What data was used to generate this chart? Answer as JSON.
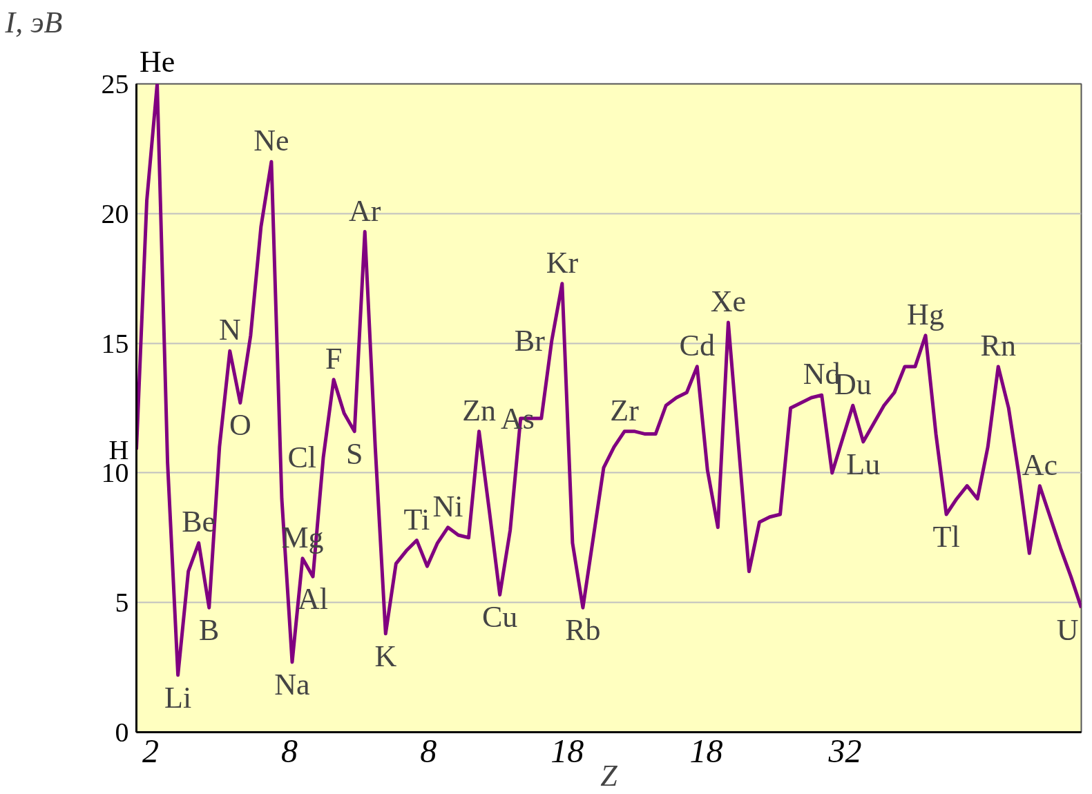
{
  "chart_data": {
    "type": "line",
    "xlabel": "Z",
    "ylabel": "I, эВ",
    "categories": [
      null,
      null,
      null,
      null,
      null,
      null,
      null,
      null,
      null,
      null,
      null,
      null,
      null,
      null,
      null,
      null,
      null,
      null,
      null,
      null,
      null,
      null,
      null,
      null,
      null,
      null,
      null,
      null,
      null,
      null,
      null,
      null,
      null,
      null,
      null,
      null,
      null,
      null,
      null,
      null,
      null,
      null,
      null,
      null,
      null,
      null,
      null,
      null,
      null,
      null,
      null,
      null,
      null,
      null,
      null,
      null,
      null,
      null,
      null,
      null,
      null,
      null,
      null,
      null,
      null,
      null,
      null,
      null,
      null,
      null,
      null,
      null,
      null,
      null,
      null,
      null,
      null,
      null,
      null,
      null,
      null,
      null,
      null,
      null,
      null,
      null,
      null,
      null,
      null,
      null,
      null,
      null
    ],
    "series": [
      {
        "color": "#800080",
        "values": [
          10.9,
          20.5,
          25.0,
          10.4,
          2.2,
          6.2,
          7.3,
          4.8,
          11.0,
          14.7,
          12.7,
          15.3,
          19.5,
          22.0,
          9.0,
          2.7,
          6.7,
          6.0,
          10.6,
          13.6,
          12.3,
          11.6,
          19.3,
          11.0,
          3.8,
          6.5,
          7.0,
          7.4,
          6.4,
          7.3,
          7.9,
          7.6,
          7.5,
          11.6,
          8.5,
          5.3,
          7.8,
          12.1,
          12.1,
          12.1,
          15.1,
          17.3,
          7.3,
          4.8,
          7.5,
          10.2,
          11.0,
          11.6,
          11.6,
          11.5,
          11.5,
          12.6,
          12.9,
          13.1,
          14.1,
          10.1,
          7.9,
          15.8,
          11.0,
          6.2,
          8.1,
          8.3,
          8.4,
          12.5,
          12.7,
          12.9,
          13.0,
          10.0,
          11.3,
          12.6,
          11.2,
          11.9,
          12.6,
          13.1,
          14.1,
          14.1,
          15.3,
          11.5,
          8.4,
          9.0,
          9.5,
          9.0,
          11.0,
          14.1,
          12.5,
          9.9,
          6.9,
          9.5,
          8.3,
          7.1,
          6.0,
          4.8
        ],
        "value_labels": [
          "H",
          null,
          "He",
          null,
          "Li",
          null,
          "Be",
          "B",
          null,
          "N",
          "O",
          null,
          null,
          "Ne",
          null,
          "Na",
          "Mg",
          "Al",
          "Cl",
          "F",
          null,
          "S",
          "Ar",
          null,
          "K",
          null,
          null,
          "Ti",
          null,
          null,
          "Ni",
          null,
          null,
          "Zn",
          null,
          "Cu",
          null,
          null,
          null,
          "As",
          "Br",
          "Kr",
          null,
          "Rb",
          null,
          null,
          null,
          "Zr",
          null,
          null,
          null,
          null,
          null,
          null,
          "Cd",
          null,
          null,
          "Xe",
          null,
          null,
          null,
          null,
          null,
          null,
          null,
          null,
          "Nd",
          null,
          null,
          "Du",
          "Lu",
          null,
          null,
          null,
          null,
          null,
          "Hg",
          null,
          "Tl",
          null,
          null,
          null,
          null,
          "Rn",
          null,
          null,
          null,
          "Ac",
          null,
          null,
          null,
          "U"
        ]
      }
    ],
    "ylim": [
      0,
      25
    ],
    "yticks": [
      0,
      5,
      10,
      15,
      20,
      25
    ],
    "grid": "y",
    "tick_labels": "y",
    "marker": "none",
    "line_style": "solid",
    "annotations": [
      "2",
      "8",
      "8",
      "18",
      "18",
      "32"
    ]
  }
}
